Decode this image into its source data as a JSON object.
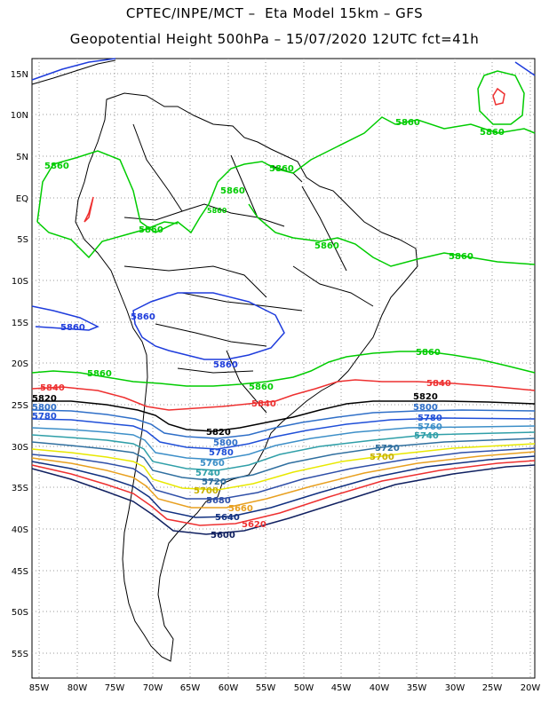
{
  "title_line1": "CPTEC/INPE/MCT –  Eta Model 15km – GFS",
  "title_line2": "Geopotential Height 500hPa – 15/07/2020 12UTC fct=41h",
  "lat_ticks": [
    "15N",
    "10N",
    "5N",
    "EQ",
    "5S",
    "10S",
    "15S",
    "20S",
    "25S",
    "30S",
    "35S",
    "40S",
    "45S",
    "50S",
    "55S"
  ],
  "lon_ticks": [
    "85W",
    "80W",
    "75W",
    "70W",
    "65W",
    "60W",
    "55W",
    "50W",
    "45W",
    "40W",
    "35W",
    "30W",
    "25W",
    "20W"
  ],
  "contours": [
    {
      "value": "5860",
      "color": "#00cc00"
    },
    {
      "value": "5860",
      "color": "#1e3cdc"
    },
    {
      "value": "5840",
      "color": "#ee3030"
    },
    {
      "value": "5820",
      "color": "#000000"
    },
    {
      "value": "5800",
      "color": "#2f6fc8"
    },
    {
      "value": "5780",
      "color": "#1f4fd8"
    },
    {
      "value": "5760",
      "color": "#3d8fc8"
    },
    {
      "value": "5740",
      "color": "#2f9fa8"
    },
    {
      "value": "5720",
      "color": "#2f6f9f"
    },
    {
      "value": "5700",
      "color": "#e8e800"
    },
    {
      "value": "5680",
      "color": "#2f4fa8"
    },
    {
      "value": "5660",
      "color": "#e8a020"
    },
    {
      "value": "5640",
      "color": "#103080"
    },
    {
      "value": "5620",
      "color": "#ee3030"
    },
    {
      "value": "5600",
      "color": "#102060"
    }
  ],
  "labels": {
    "l5860_a": "5860",
    "l5860_b": "5860",
    "l5860_c": "5860",
    "l5860_d": "5860",
    "l5860_e": "5860",
    "l5860_f": "5860",
    "l5860_g": "5860",
    "l5860_h": "5860",
    "l5860_i": "5860",
    "l5860_j": "5860",
    "l5860_k": "5860",
    "l5860_l": "5860",
    "l5860_blue_a": "5860",
    "l5860_blue_b": "5860",
    "l5860_blue_c": "5860",
    "l5840_a": "5840",
    "l5840_b": "5840",
    "l5840_c": "5840",
    "l5820_a": "5820",
    "l5820_b": "5820",
    "l5820_c": "5820",
    "l5800_a": "5800",
    "l5800_b": "5800",
    "l5800_c": "5800",
    "l5780_a": "5780",
    "l5780_b": "5780",
    "l5780_c": "5780",
    "l5760_a": "5760",
    "l5760_b": "5760",
    "l5740_a": "5740",
    "l5740_b": "5740",
    "l5720_a": "5720",
    "l5720_b": "5720",
    "l5700_a": "5700",
    "l5700_b": "5700",
    "l5680": "5680",
    "l5660": "5660",
    "l5640": "5640",
    "l5620": "5620",
    "l5600": "5600"
  }
}
